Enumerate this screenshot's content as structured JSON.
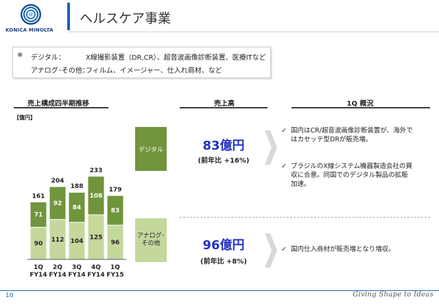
{
  "brand": {
    "logo_text": "KONICA MINOLTA"
  },
  "page_title": "ヘルスケア事業",
  "note": {
    "mark": "※",
    "digital_label": "デジタル：",
    "digital_value": "X線撮影装置（DR,CR）、超音波画像診断装置、医療ITなど",
    "analog_label": "アナログ･その他：",
    "analog_value": "フィルム、イメージャー、仕入れ商材、など"
  },
  "sections": {
    "trend_title": "売上構成四半期推移",
    "sales_title": "売上高",
    "overview_title": "1Q 概況"
  },
  "unit_label": "【億円】",
  "segments": {
    "digital": "デジタル",
    "analog": "アナログ･\nその他"
  },
  "sales": {
    "digital_amount": "83億円",
    "digital_yoy": "(前年比 +16%)",
    "analog_amount": "96億円",
    "analog_yoy": "(前年比 +8%)"
  },
  "bullets": {
    "check": "✓",
    "digital": [
      "国内はCR/超音波画像診断装置が、海外ではカセッテ型DRが販売増。",
      "ブラジルのX線システム機器製造会社の買収に合意。同国でのデジタル製品の拡販加速。"
    ],
    "analog": [
      "国内仕入商材が販売増となり増収。"
    ]
  },
  "chart_data": {
    "type": "bar",
    "stacked": true,
    "categories": [
      "1Q\nFY14",
      "2Q\nFY14",
      "3Q\nFY14",
      "4Q\nFY14",
      "1Q\nFY15"
    ],
    "series": [
      {
        "name": "アナログ･その他",
        "values": [
          90,
          112,
          104,
          125,
          96
        ],
        "color": "#c4d89c"
      },
      {
        "name": "デジタル",
        "values": [
          71,
          92,
          84,
          108,
          83
        ],
        "color": "#71953c"
      }
    ],
    "totals": [
      161,
      204,
      188,
      233,
      179
    ],
    "ylabel": "【億円】",
    "ylim": [
      0,
      240
    ]
  },
  "footer": {
    "page_number": "10",
    "slogan": "Giving Shape to Ideas"
  }
}
